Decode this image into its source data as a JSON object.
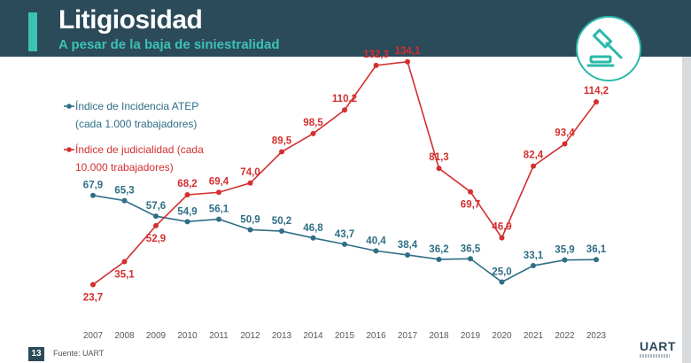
{
  "header": {
    "title": "Litigiosidad",
    "subtitle": "A pesar de la baja de siniestralidad"
  },
  "footer": {
    "page_number": "13",
    "source": "Fuente: UART",
    "logo_text": "UART"
  },
  "icon": {
    "name": "gavel-icon"
  },
  "colors": {
    "header_bg": "#2b4a5a",
    "accent": "#3cc2b4",
    "series_atep": "#2e6e86",
    "series_judicial": "#d32f2f",
    "axis_text": "#595959"
  },
  "chart_data": {
    "type": "line",
    "categories": [
      "2007",
      "2008",
      "2009",
      "2010",
      "2011",
      "2012",
      "2013",
      "2014",
      "2015",
      "2016",
      "2017",
      "2018",
      "2019",
      "2020",
      "2021",
      "2022",
      "2023"
    ],
    "series": [
      {
        "name": "Índice de Incidencia ATEP (cada 1.000 trabajadores)",
        "label_lines": [
          "Índice de Incidencia ATEP",
          "(cada 1.000 trabajadores)"
        ],
        "values": [
          67.9,
          65.3,
          57.6,
          54.9,
          56.1,
          50.9,
          50.2,
          46.8,
          43.7,
          40.4,
          38.4,
          36.2,
          36.5,
          25.0,
          33.1,
          35.9,
          36.1
        ],
        "value_labels": [
          "67,9",
          "65,3",
          "57,6",
          "54,9",
          "56,1",
          "50,9",
          "50,2",
          "46,8",
          "43,7",
          "40,4",
          "38,4",
          "36,2",
          "36,5",
          "25,0",
          "33,1",
          "35,9",
          "36,1"
        ],
        "color": "#2e6e86"
      },
      {
        "name": "Índice de judicialidad (cada 10.000 trabajadores)",
        "label_lines": [
          "Índice de judicialidad (cada",
          "10.000 trabajadores)"
        ],
        "values": [
          23.7,
          35.1,
          52.9,
          68.2,
          69.4,
          74.0,
          89.5,
          98.5,
          110.2,
          132.3,
          134.1,
          81.3,
          69.7,
          46.9,
          82.4,
          93.4,
          114.2
        ],
        "value_labels": [
          "23,7",
          "35,1",
          "52,9",
          "68,2",
          "69,4",
          "74,0",
          "89,5",
          "98,5",
          "110,2",
          "132,3",
          "134,1",
          "81,3",
          "69,7",
          "46,9",
          "82,4",
          "93,4",
          "114,2"
        ],
        "color": "#d32f2f"
      }
    ],
    "legend_position": "top-left",
    "grid": false
  }
}
